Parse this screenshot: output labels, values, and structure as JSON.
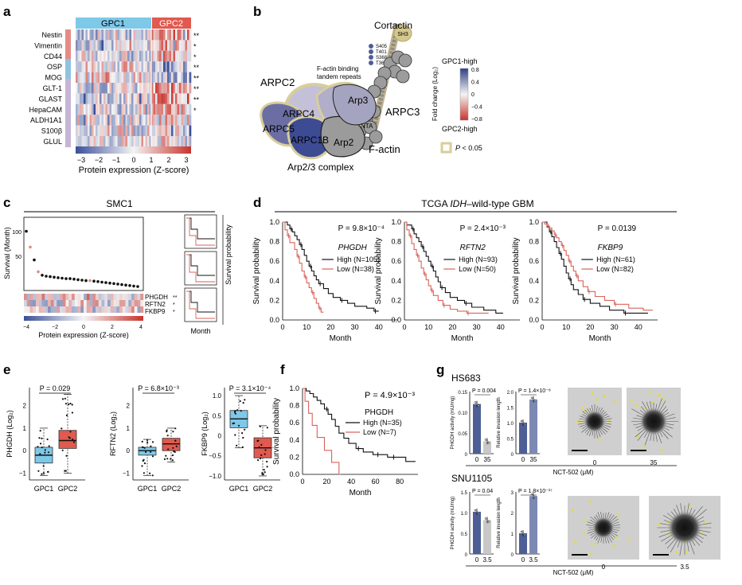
{
  "panel_a": {
    "label": "a",
    "group_left": "GPC1",
    "group_right": "GPC2",
    "genes": [
      "Nestin",
      "Vimentin",
      "CD44",
      "OSP",
      "MOG",
      "GLT-1",
      "GLAST",
      "HepaCAM",
      "ALDH1A1",
      "S100β",
      "GLUL"
    ],
    "stars": [
      "**",
      "*",
      "*",
      "**",
      "**",
      "**",
      "**",
      "*",
      "",
      "",
      ""
    ],
    "ticks": [
      "−3",
      "−2",
      "−1",
      "0",
      "1",
      "2",
      "3"
    ],
    "colorbar_label": "Protein expression (Z-score)"
  },
  "panel_b": {
    "label": "b",
    "cortactin": "Cortactin",
    "sh3": "SH3",
    "sites": [
      "S405",
      "T401",
      "S368",
      "T364"
    ],
    "repeats_1": "F-actin binding",
    "repeats_2": "tandem repeats",
    "arpc2": "ARPC2",
    "arpc4": "ARPC4",
    "arpc5": "ARPC5",
    "arpc1b": "ARPC1B",
    "arp3": "Arp3",
    "arp2": "Arp2",
    "nta": "NTA",
    "arpc3": "ARPC3",
    "factin": "F-actin",
    "complex": "Arp2/3 complex",
    "legend_top": "GPC1-high",
    "legend_bottom": "GPC2-high",
    "legend_axis": "Fold change (Log₂)",
    "legend_ticks": [
      "0.8",
      "0.4",
      "0",
      "−0.4",
      "−0.8"
    ],
    "p_prefix": "P",
    "p_suffix": " < 0.05"
  },
  "panel_c": {
    "label": "c",
    "title": "SMC1",
    "ylabel": "Survival (Month)",
    "yticks": [
      "100",
      "50"
    ],
    "genes": [
      "PHGDH",
      "RFTN2",
      "FKBP9"
    ],
    "stars": [
      "**",
      "*",
      "*"
    ],
    "xticks": [
      "−4",
      "−2",
      "0",
      "2",
      "4"
    ],
    "xlabel": "Protein expression (Z-score)",
    "side_xlabel": "Month",
    "side_ylabel": "Survival probability"
  },
  "panel_d": {
    "label": "d",
    "title_pre": "TCGA ",
    "title_em": "IDH",
    "title_post": "–wild-type GBM",
    "ylabel": "Survival probability",
    "xlabel": "Month",
    "yticks": [
      "0.0",
      "0.2",
      "0.4",
      "0.6",
      "0.8",
      "1.0"
    ],
    "xticks": [
      "0",
      "10",
      "20",
      "30",
      "40"
    ],
    "plots": [
      {
        "p": "P = 9.8×10⁻⁴",
        "gene": "PHGDH",
        "high": "High (N=105)",
        "low": "Low (N=38)"
      },
      {
        "p": "P = 2.4×10⁻³",
        "gene": "RFTN2",
        "high": "High (N=93)",
        "low": "Low (N=50)"
      },
      {
        "p": "P = 0.0139",
        "gene": "FKBP9",
        "high": "High (N=61)",
        "low": "Low (N=82)"
      }
    ]
  },
  "panel_e": {
    "label": "e",
    "plots": [
      {
        "p": "P = 0.029",
        "ylabel": "PHGDH (Log₂)",
        "yticks": [
          "2",
          "1",
          "0",
          "−1"
        ],
        "cats": [
          "GPC1",
          "GPC2"
        ]
      },
      {
        "p": "P = 6.8×10⁻³",
        "ylabel": "RFTN2 (Log₂)",
        "yticks": [
          "2",
          "1",
          "0",
          "−1"
        ],
        "cats": [
          "GPC1",
          "GPC2"
        ]
      },
      {
        "p": "P = 3.1×10⁻⁴",
        "ylabel": "FKBP9 (Log₂)",
        "yticks": [
          "1.0",
          "0.5",
          "0",
          "−0.5",
          "−1.0"
        ],
        "cats": [
          "GPC1",
          "GPC2"
        ]
      }
    ]
  },
  "panel_f": {
    "label": "f",
    "p": "P = 4.9×10⁻³",
    "gene": "PHGDH",
    "high": "High (N=35)",
    "low": "Low (N=7)",
    "ylabel": "Survival probability",
    "xlabel": "Month",
    "yticks": [
      "1.0",
      "0.8",
      "0.6",
      "0.4",
      "0.2",
      "0.0"
    ],
    "xticks": [
      "0",
      "20",
      "40",
      "60",
      "80"
    ]
  },
  "panel_g": {
    "label": "g",
    "rows": [
      {
        "cell": "HS683",
        "p1": "P = 0.004",
        "p2": "P = 1.4×10⁻⁸",
        "yl1": "PHGDH activity (mU/mg)",
        "yl2": "Relative invasion length",
        "yt1": [
          "0.15",
          "0.10",
          "0.05",
          "0"
        ],
        "yt2": [
          "2.0",
          "1.5",
          "1.0",
          "0.5",
          "0"
        ],
        "dose": [
          "0",
          "35"
        ],
        "drug": "NCT-502 (μM)"
      },
      {
        "cell": "SNU1105",
        "p1": "P = 0.04",
        "p2": "P = 1.8×10⁻¹⁷",
        "yl1": "PHGDH activity (mU/mg)",
        "yl2": "Relative invasion length",
        "yt1": [
          "1.5",
          "1.0",
          "0.5",
          "0"
        ],
        "yt2": [
          "3",
          "2",
          "1",
          "0"
        ],
        "dose": [
          "0",
          "3.5"
        ],
        "drug": "NCT-502 (μM)"
      }
    ]
  },
  "colors": {
    "gpc1": "#7ec8e8",
    "gpc2": "#e05a4f",
    "low_curve": "#d9635a",
    "bar_dark": "#4d5f95",
    "bar_light": "#c8c8c8",
    "heat_red": "#c8332c",
    "heat_blue": "#3a4f99"
  }
}
